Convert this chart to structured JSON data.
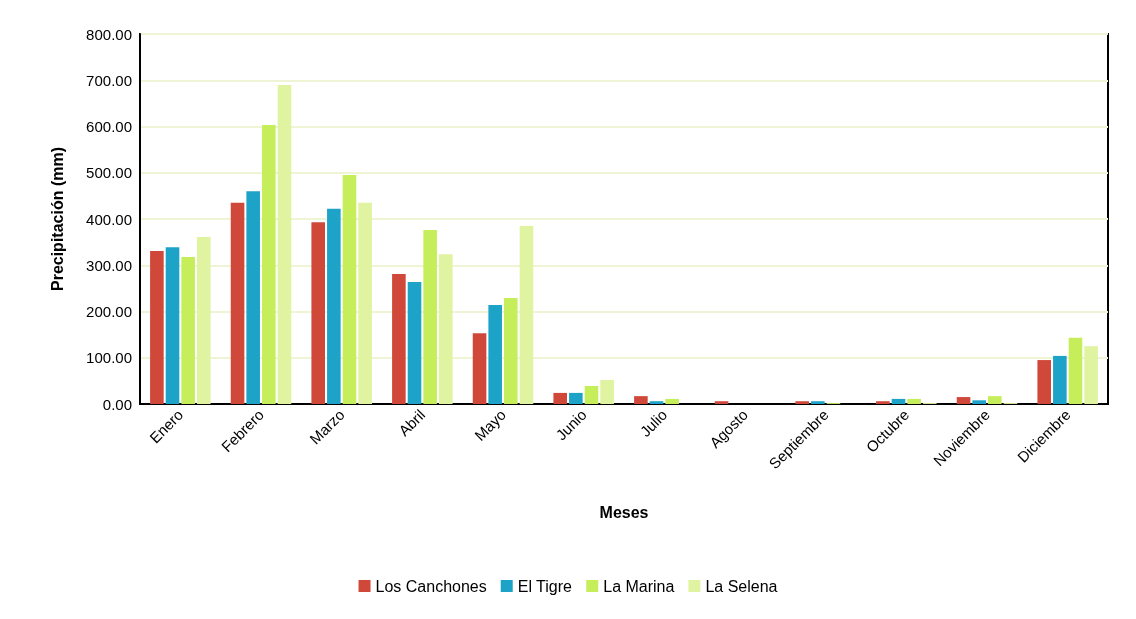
{
  "chart_data": {
    "type": "bar",
    "xlabel": "Meses",
    "ylabel": "Precipitación (mm)",
    "categories": [
      "Enero",
      "Febrero",
      "Marzo",
      "Abril",
      "Mayo",
      "Junio",
      "Julio",
      "Agosto",
      "Septiembre",
      "Octubre",
      "Noviembre",
      "Diciembre"
    ],
    "series": [
      {
        "name": "Los Canchones",
        "color": "#d0483a",
        "values": [
          331,
          435,
          393,
          281,
          153,
          24,
          17,
          6,
          6,
          6,
          15,
          95
        ]
      },
      {
        "name": "El Tigre",
        "color": "#1ea3c8",
        "values": [
          339,
          460,
          422,
          264,
          214,
          24,
          6,
          0,
          6,
          11,
          8,
          104
        ]
      },
      {
        "name": "La Marina",
        "color": "#c6ee5a",
        "values": [
          318,
          603,
          495,
          376,
          229,
          39,
          11,
          0,
          2,
          11,
          17,
          143
        ]
      },
      {
        "name": "La Selena",
        "color": "#dff3a0",
        "values": [
          361,
          690,
          435,
          324,
          385,
          52,
          0,
          0,
          0,
          2,
          2,
          125
        ]
      }
    ],
    "ylim": [
      0,
      800
    ],
    "yticks": [
      {
        "value": 0,
        "label": "0.00"
      },
      {
        "value": 100,
        "label": "100.00"
      },
      {
        "value": 200,
        "label": "200.00"
      },
      {
        "value": 300,
        "label": "300.00"
      },
      {
        "value": 400,
        "label": "400.00"
      },
      {
        "value": 500,
        "label": "500.00"
      },
      {
        "value": 600,
        "label": "600.00"
      },
      {
        "value": 700,
        "label": "700.00"
      },
      {
        "value": 800,
        "label": "800.00"
      }
    ],
    "grid": "y",
    "legend": "bottom"
  }
}
